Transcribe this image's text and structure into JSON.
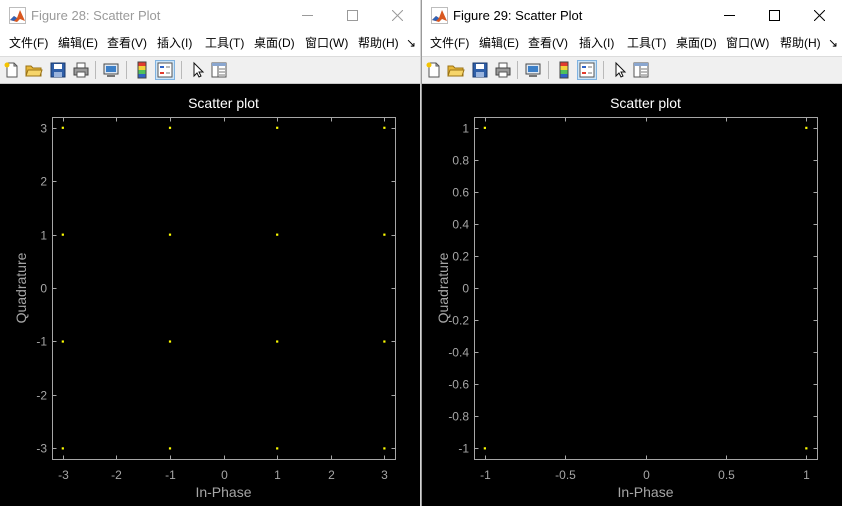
{
  "windows": [
    {
      "title": "Figure 28: Scatter Plot",
      "active": false,
      "menu": [
        "文件(F)",
        "编辑(E)",
        "查看(V)",
        "插入(I)",
        "工具(T)",
        "桌面(D)",
        "窗口(W)",
        "帮助(H)"
      ],
      "menu_overflow": "↘",
      "toolbar": [
        "new-figure-icon",
        "open-folder-icon",
        "save-icon",
        "print-icon",
        "print-preview-icon",
        "colorbar-icon",
        "legend-icon",
        "pointer-arrow-icon",
        "property-editor-icon"
      ],
      "chart_data": {
        "type": "scatter",
        "title": "Scatter plot",
        "xlabel": "In-Phase",
        "ylabel": "Quadrature",
        "xlim": [
          -3.2,
          3.2
        ],
        "ylim": [
          -3.2,
          3.2
        ],
        "xticks": [
          -3,
          -2,
          -1,
          0,
          1,
          2,
          3
        ],
        "yticks": [
          -3,
          -2,
          -1,
          0,
          1,
          2,
          3
        ],
        "xtick_labels": [
          "-3",
          "-2",
          "-1",
          "0",
          "1",
          "2",
          "3"
        ],
        "ytick_labels": [
          "-3",
          "-2",
          "-1",
          "0",
          "1",
          "2",
          "3"
        ],
        "grid": false,
        "marker_color": "#ffff00",
        "points": [
          [
            -3,
            3
          ],
          [
            -1,
            3
          ],
          [
            1,
            3
          ],
          [
            3,
            3
          ],
          [
            -3,
            1
          ],
          [
            -1,
            1
          ],
          [
            1,
            1
          ],
          [
            3,
            1
          ],
          [
            -3,
            -1
          ],
          [
            -1,
            -1
          ],
          [
            1,
            -1
          ],
          [
            3,
            -1
          ],
          [
            -3,
            -3
          ],
          [
            -1,
            -3
          ],
          [
            1,
            -3
          ],
          [
            3,
            -3
          ]
        ]
      }
    },
    {
      "title": "Figure 29: Scatter Plot",
      "active": true,
      "menu": [
        "文件(F)",
        "编辑(E)",
        "查看(V)",
        "插入(I)",
        "工具(T)",
        "桌面(D)",
        "窗口(W)",
        "帮助(H)"
      ],
      "menu_overflow": "↘",
      "toolbar": [
        "new-figure-icon",
        "open-folder-icon",
        "save-icon",
        "print-icon",
        "print-preview-icon",
        "colorbar-icon",
        "legend-icon",
        "pointer-arrow-icon",
        "property-editor-icon"
      ],
      "chart_data": {
        "type": "scatter",
        "title": "Scatter plot",
        "xlabel": "In-Phase",
        "ylabel": "Quadrature",
        "xlim": [
          -1.067,
          1.067
        ],
        "ylim": [
          -1.067,
          1.067
        ],
        "xticks": [
          -1,
          -0.5,
          0,
          0.5,
          1
        ],
        "yticks": [
          -1,
          -0.8,
          -0.6,
          -0.4,
          -0.2,
          0,
          0.2,
          0.4,
          0.6,
          0.8,
          1
        ],
        "xtick_labels": [
          "-1",
          "-0.5",
          "0",
          "0.5",
          "1"
        ],
        "ytick_labels": [
          "-1",
          "-0.8",
          "-0.6",
          "-0.4",
          "-0.2",
          "0",
          "0.2",
          "0.4",
          "0.6",
          "0.8",
          "1"
        ],
        "grid": false,
        "marker_color": "#ffff00",
        "points": [
          [
            -1,
            1
          ],
          [
            1,
            1
          ],
          [
            -1,
            -1
          ],
          [
            1,
            -1
          ]
        ]
      }
    }
  ],
  "colors": {
    "plot_background": "#000000",
    "axes_foreground": "#a6a6a6",
    "title_text": "#ffffff",
    "marker": "#ffff00"
  }
}
